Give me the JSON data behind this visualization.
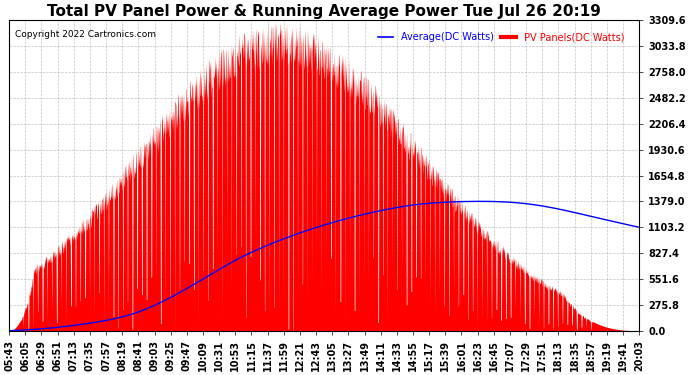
{
  "title": "Total PV Panel Power & Running Average Power Tue Jul 26 20:19",
  "copyright": "Copyright 2022 Cartronics.com",
  "legend_avg": "Average(DC Watts)",
  "legend_pv": "PV Panels(DC Watts)",
  "ylabel_ticks": [
    0.0,
    275.8,
    551.6,
    827.4,
    1103.2,
    1379.0,
    1654.8,
    1930.6,
    2206.4,
    2482.2,
    2758.0,
    3033.8,
    3309.6
  ],
  "ymax": 3309.6,
  "ymin": 0.0,
  "pv_color": "#FF0000",
  "avg_color": "#0000FF",
  "bg_color": "#FFFFFF",
  "grid_color": "#AAAAAA",
  "title_fontsize": 11,
  "tick_fontsize": 7,
  "x_labels": [
    "05:43",
    "06:05",
    "06:29",
    "06:51",
    "07:13",
    "07:35",
    "07:57",
    "08:19",
    "08:41",
    "09:03",
    "09:25",
    "09:47",
    "10:09",
    "10:31",
    "10:53",
    "11:15",
    "11:37",
    "11:59",
    "12:21",
    "12:43",
    "13:05",
    "13:27",
    "13:49",
    "14:11",
    "14:33",
    "14:55",
    "15:17",
    "15:39",
    "16:01",
    "16:23",
    "16:45",
    "17:07",
    "17:29",
    "17:51",
    "18:13",
    "18:35",
    "18:57",
    "19:19",
    "19:41",
    "20:03"
  ],
  "avg_points_x": [
    0,
    2,
    5,
    8,
    11,
    14,
    17,
    19,
    21,
    23,
    25,
    27,
    29,
    31,
    33,
    35,
    37,
    39
  ],
  "avg_points_y": [
    0,
    20,
    80,
    200,
    450,
    750,
    980,
    1100,
    1200,
    1280,
    1340,
    1370,
    1379,
    1370,
    1330,
    1260,
    1180,
    1103
  ]
}
